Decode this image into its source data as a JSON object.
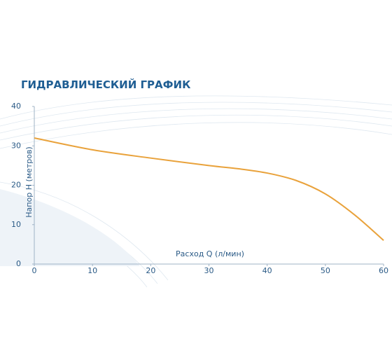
{
  "chart_data": {
    "type": "line",
    "title": "ГИДРАВЛИЧЕСКИЙ ГРАФИК",
    "x_label": "Расход Q (л/мин)",
    "y_label": "Напор H (метров)",
    "x": [
      0,
      10,
      20,
      30,
      35,
      40,
      45,
      50,
      55,
      60
    ],
    "series": [
      {
        "name": null,
        "color": "#e9a23b",
        "values": [
          32,
          29,
          26.9,
          25,
          24.2,
          23.1,
          21.2,
          17.8,
          12.5,
          6
        ]
      }
    ],
    "xlim": [
      0,
      60
    ],
    "xticks": [
      0,
      10,
      20,
      30,
      40,
      50,
      60
    ],
    "ylim": [
      0,
      40
    ],
    "yticks": [
      0,
      10,
      20,
      30,
      40
    ]
  }
}
